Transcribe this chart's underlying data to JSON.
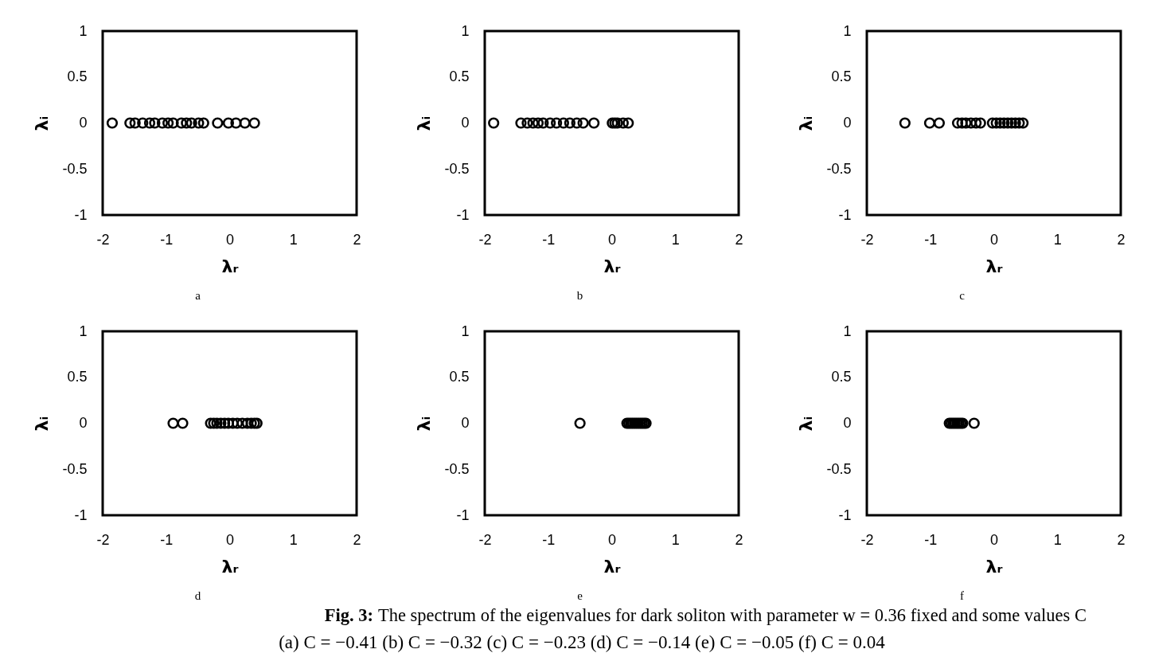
{
  "chart_data": [
    {
      "type": "scatter",
      "xlabel": "λᵣ",
      "ylabel": "λᵢ",
      "xlim": [
        -2,
        2
      ],
      "ylim": [
        -1,
        1
      ],
      "xticks": [
        -2,
        -1,
        0,
        1,
        2
      ],
      "yticks": [
        -1,
        -0.5,
        0,
        0.5,
        1
      ],
      "marker": "circle",
      "x": [
        -1.85,
        -1.57,
        -1.49,
        -1.37,
        -1.26,
        -1.18,
        -1.06,
        -0.97,
        -0.89,
        -0.76,
        -0.68,
        -0.6,
        -0.49,
        -0.41,
        -0.19,
        -0.02,
        0.1,
        0.24,
        0.39
      ],
      "series": [
        {
          "color": "#000000",
          "values": [
            0,
            0,
            0,
            0,
            0,
            0,
            0,
            0,
            0,
            0,
            0,
            0,
            0,
            0,
            0,
            0,
            0,
            0,
            0
          ]
        }
      ],
      "annotations": [
        "a"
      ]
    },
    {
      "type": "scatter",
      "xlabel": "λᵣ",
      "ylabel": "λᵢ",
      "xlim": [
        -2,
        2
      ],
      "ylim": [
        -1,
        1
      ],
      "xticks": [
        -2,
        -1,
        0,
        1,
        2
      ],
      "yticks": [
        -1,
        -0.5,
        0,
        0.5,
        1
      ],
      "marker": "circle",
      "x": [
        -1.86,
        -1.43,
        -1.33,
        -1.24,
        -1.16,
        -1.08,
        -0.97,
        -0.87,
        -0.76,
        -0.66,
        -0.55,
        -0.45,
        -0.28,
        0.01,
        0.05,
        0.09,
        0.18,
        0.26
      ],
      "series": [
        {
          "color": "#000000",
          "values": [
            0,
            0,
            0,
            0,
            0,
            0,
            0,
            0,
            0,
            0,
            0,
            0,
            0,
            0,
            0,
            0,
            0,
            0
          ]
        }
      ],
      "annotations": [
        "b"
      ]
    },
    {
      "type": "scatter",
      "xlabel": "λᵣ",
      "ylabel": "λᵢ",
      "xlim": [
        -2,
        2
      ],
      "ylim": [
        -1,
        1
      ],
      "xticks": [
        -2,
        -1,
        0,
        1,
        2
      ],
      "yticks": [
        -1,
        -0.5,
        0,
        0.5,
        1
      ],
      "marker": "circle",
      "x": [
        -1.4,
        -1.01,
        -0.86,
        -0.57,
        -0.5,
        -0.44,
        -0.36,
        -0.28,
        -0.21,
        -0.02,
        0.04,
        0.1,
        0.16,
        0.22,
        0.28,
        0.34,
        0.4,
        0.46
      ],
      "series": [
        {
          "color": "#000000",
          "values": [
            0,
            0,
            0,
            0,
            0,
            0,
            0,
            0,
            0,
            0,
            0,
            0,
            0,
            0,
            0,
            0,
            0,
            0
          ]
        }
      ],
      "annotations": [
        "c"
      ]
    },
    {
      "type": "scatter",
      "xlabel": "λᵣ",
      "ylabel": "λᵢ",
      "xlim": [
        -2,
        2
      ],
      "ylim": [
        -1,
        1
      ],
      "xticks": [
        -2,
        -1,
        0,
        1,
        2
      ],
      "yticks": [
        -1,
        -0.5,
        0,
        0.5,
        1
      ],
      "marker": "circle",
      "x": [
        -0.89,
        -0.74,
        -0.3,
        -0.25,
        -0.2,
        -0.14,
        -0.08,
        -0.02,
        0.05,
        0.12,
        0.2,
        0.28,
        0.34,
        0.39,
        0.43
      ],
      "series": [
        {
          "color": "#000000",
          "values": [
            0,
            0,
            0,
            0,
            0,
            0,
            0,
            0,
            0,
            0,
            0,
            0,
            0,
            0,
            0
          ]
        }
      ],
      "annotations": [
        "d"
      ]
    },
    {
      "type": "scatter",
      "xlabel": "λᵣ",
      "ylabel": "λᵢ",
      "xlim": [
        -2,
        2
      ],
      "ylim": [
        -1,
        1
      ],
      "xticks": [
        -2,
        -1,
        0,
        1,
        2
      ],
      "yticks": [
        -1,
        -0.5,
        0,
        0.5,
        1
      ],
      "marker": "circle",
      "x": [
        -0.5,
        0.24,
        0.27,
        0.3,
        0.33,
        0.36,
        0.39,
        0.42,
        0.45,
        0.48,
        0.51,
        0.54
      ],
      "series": [
        {
          "color": "#000000",
          "values": [
            0,
            0,
            0,
            0,
            0,
            0,
            0,
            0,
            0,
            0,
            0,
            0
          ]
        }
      ],
      "annotations": [
        "e"
      ]
    },
    {
      "type": "scatter",
      "xlabel": "λᵣ",
      "ylabel": "λᵢ",
      "xlim": [
        -2,
        2
      ],
      "ylim": [
        -1,
        1
      ],
      "xticks": [
        -2,
        -1,
        0,
        1,
        2
      ],
      "yticks": [
        -1,
        -0.5,
        0,
        0.5,
        1
      ],
      "marker": "circle",
      "x": [
        -0.7,
        -0.67,
        -0.64,
        -0.61,
        -0.58,
        -0.55,
        -0.52,
        -0.49,
        -0.31
      ],
      "series": [
        {
          "color": "#000000",
          "values": [
            0,
            0,
            0,
            0,
            0,
            0,
            0,
            0,
            0
          ]
        }
      ],
      "annotations": [
        "f"
      ]
    },
    {
      "type": "other",
      "annotations": [
        "Fig. 3:",
        "The spectrum of the eigenvalues for dark soliton with parameter w = 0.36 fixed and some values C",
        "(a) C = −0.41 (b) C = −0.32 (c) C = −0.23 (d) C = −0.14 (e) C = −0.05 (f) C = 0.04"
      ]
    }
  ]
}
